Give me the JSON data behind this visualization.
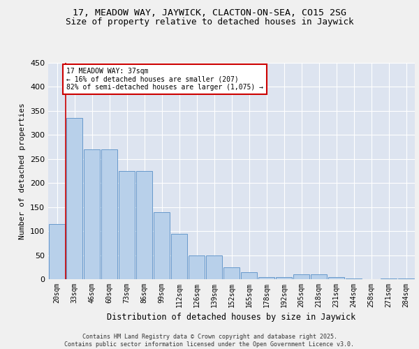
{
  "title1": "17, MEADOW WAY, JAYWICK, CLACTON-ON-SEA, CO15 2SG",
  "title2": "Size of property relative to detached houses in Jaywick",
  "xlabel": "Distribution of detached houses by size in Jaywick",
  "ylabel": "Number of detached properties",
  "categories": [
    "20sqm",
    "33sqm",
    "46sqm",
    "60sqm",
    "73sqm",
    "86sqm",
    "99sqm",
    "112sqm",
    "126sqm",
    "139sqm",
    "152sqm",
    "165sqm",
    "178sqm",
    "192sqm",
    "205sqm",
    "218sqm",
    "231sqm",
    "244sqm",
    "258sqm",
    "271sqm",
    "284sqm"
  ],
  "values": [
    115,
    335,
    270,
    270,
    225,
    225,
    140,
    95,
    50,
    50,
    25,
    15,
    5,
    5,
    10,
    10,
    5,
    2,
    0,
    2,
    1
  ],
  "bar_color": "#b8d0ea",
  "bar_edge_color": "#6699cc",
  "background_color": "#dde4f0",
  "grid_color": "#ffffff",
  "annotation_text": "17 MEADOW WAY: 37sqm\n← 16% of detached houses are smaller (207)\n82% of semi-detached houses are larger (1,075) →",
  "annotation_box_color": "#ffffff",
  "annotation_box_edge_color": "#cc0000",
  "property_line_x": 0.5,
  "property_line_color": "#cc0000",
  "footer": "Contains HM Land Registry data © Crown copyright and database right 2025.\nContains public sector information licensed under the Open Government Licence v3.0.",
  "ylim": [
    0,
    450
  ],
  "title1_fontsize": 9.5,
  "title2_fontsize": 9,
  "xlabel_fontsize": 8.5,
  "ylabel_fontsize": 8,
  "tick_fontsize": 7,
  "footer_fontsize": 6,
  "annot_fontsize": 7
}
